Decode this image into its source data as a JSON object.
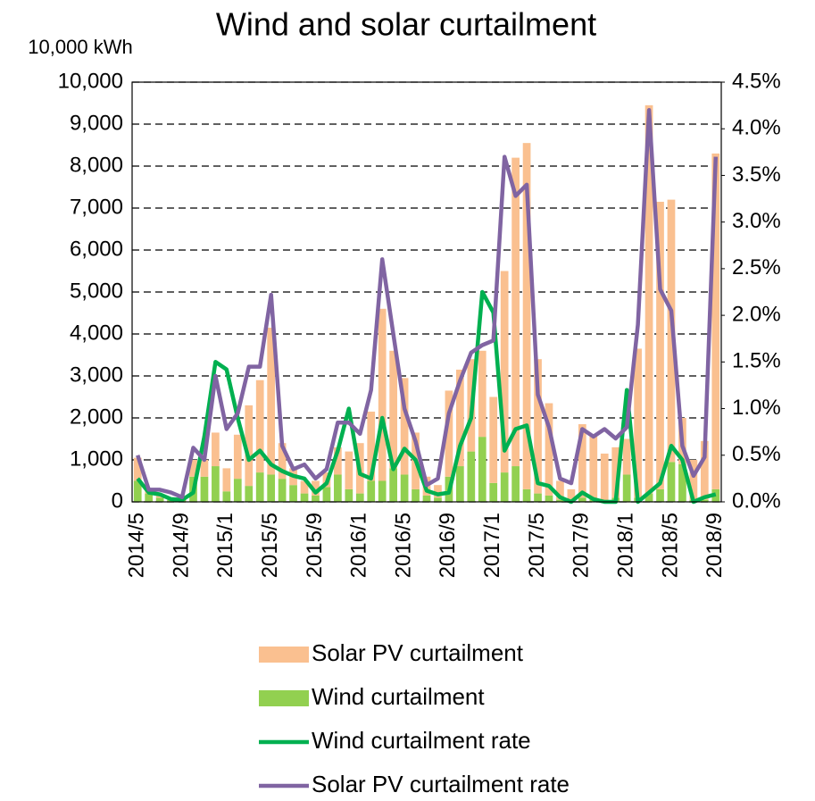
{
  "chart_data": {
    "type": "bar",
    "title": "Wind and solar curtailment",
    "y_axis_label": "10,000 kWh",
    "stacked": true,
    "grid": true,
    "categories": [
      "2014/5",
      null,
      null,
      null,
      "2014/9",
      null,
      null,
      null,
      "2015/1",
      null,
      null,
      null,
      "2015/5",
      null,
      null,
      null,
      "2015/9",
      null,
      null,
      null,
      "2016/1",
      null,
      null,
      null,
      "2016/5",
      null,
      null,
      null,
      "2016/9",
      null,
      null,
      null,
      "2017/1",
      null,
      null,
      null,
      "2017/5",
      null,
      null,
      null,
      "2017/9",
      null,
      null,
      null,
      "2018/1",
      null,
      null,
      null,
      "2018/5",
      null,
      null,
      null,
      "2018/9"
    ],
    "ylim": [
      0,
      10000
    ],
    "yticks": [
      0,
      {
        "value": 1000,
        "label": "1,000"
      },
      {
        "value": 2000,
        "label": "2,000"
      },
      {
        "value": 3000,
        "label": "3,000"
      },
      {
        "value": 4000,
        "label": "4,000"
      },
      {
        "value": 5000,
        "label": "5,000"
      },
      {
        "value": 6000,
        "label": "6,000"
      },
      {
        "value": 7000,
        "label": "7,000"
      },
      {
        "value": 8000,
        "label": "8,000"
      },
      {
        "value": 9000,
        "label": "9,000"
      },
      {
        "value": 10000,
        "label": "10,000"
      }
    ],
    "y2lim": [
      0,
      4.5
    ],
    "y2ticks": [
      {
        "value": 0,
        "label": "0.0%"
      },
      {
        "value": 0.5,
        "label": "0.5%"
      },
      {
        "value": 1,
        "label": "1.0%"
      },
      {
        "value": 1.5,
        "label": "1.5%"
      },
      {
        "value": 2,
        "label": "2.0%"
      },
      {
        "value": 2.5,
        "label": "2.5%"
      },
      {
        "value": 3,
        "label": "3.0%"
      },
      {
        "value": 3.5,
        "label": "3.5%"
      },
      {
        "value": 4,
        "label": "4.0%"
      },
      {
        "value": 4.5,
        "label": "4.5%"
      }
    ],
    "series": [
      {
        "name": "Solar PV curtailment",
        "kind": "bar",
        "color": "#fac090",
        "values": [
          550,
          100,
          50,
          50,
          70,
          400,
          400,
          800,
          550,
          1050,
          1920,
          2200,
          3500,
          850,
          400,
          300,
          350,
          350,
          650,
          900,
          1200,
          1650,
          4100,
          2800,
          2300,
          1350,
          450,
          300,
          2050,
          2300,
          2200,
          2050,
          2050,
          4800,
          7350,
          8250,
          3200,
          2200,
          450,
          250,
          1750,
          1520,
          1100,
          1200,
          850,
          3550,
          9250,
          6850,
          6250,
          1100,
          950,
          1400,
          8000
        ]
      },
      {
        "name": "Wind curtailment",
        "kind": "bar",
        "color": "#92d050",
        "values": [
          500,
          200,
          100,
          50,
          80,
          600,
          600,
          850,
          250,
          550,
          380,
          700,
          650,
          550,
          400,
          200,
          150,
          350,
          650,
          300,
          200,
          500,
          500,
          800,
          650,
          300,
          150,
          100,
          600,
          850,
          1200,
          1550,
          450,
          700,
          850,
          300,
          200,
          150,
          50,
          50,
          100,
          80,
          50,
          100,
          650,
          100,
          200,
          300,
          950,
          900,
          50,
          50,
          300
        ]
      },
      {
        "name": "Wind curtailment rate",
        "kind": "line",
        "axis": "y2",
        "color": "#00b050",
        "values": [
          0.25,
          0.1,
          0.08,
          0.03,
          0.02,
          0.1,
          0.7,
          1.5,
          1.42,
          0.9,
          0.45,
          0.55,
          0.4,
          0.33,
          0.28,
          0.25,
          0.1,
          0.2,
          0.55,
          1.0,
          0.3,
          0.25,
          0.9,
          0.35,
          0.57,
          0.45,
          0.12,
          0.08,
          0.1,
          0.6,
          0.9,
          2.25,
          2.03,
          0.55,
          0.78,
          0.82,
          0.2,
          0.17,
          0.05,
          0.0,
          0.1,
          0.03,
          0.0,
          0.0,
          1.2,
          0.0,
          0.1,
          0.2,
          0.6,
          0.45,
          0.0,
          0.05,
          0.08
        ]
      },
      {
        "name": "Solar PV curtailment rate",
        "kind": "line",
        "axis": "y2",
        "color": "#8064a2",
        "values": [
          0.5,
          0.13,
          0.13,
          0.1,
          0.05,
          0.58,
          0.45,
          1.35,
          0.78,
          0.95,
          1.45,
          1.45,
          2.22,
          0.6,
          0.35,
          0.4,
          0.25,
          0.35,
          0.85,
          0.85,
          0.73,
          1.2,
          2.6,
          1.8,
          1.0,
          0.65,
          0.18,
          0.25,
          0.95,
          1.3,
          1.6,
          1.68,
          1.73,
          3.7,
          3.28,
          3.4,
          1.15,
          0.8,
          0.25,
          0.2,
          0.78,
          0.7,
          0.78,
          0.68,
          0.8,
          1.9,
          4.2,
          2.28,
          2.05,
          0.6,
          0.28,
          0.48,
          3.7
        ]
      }
    ]
  }
}
